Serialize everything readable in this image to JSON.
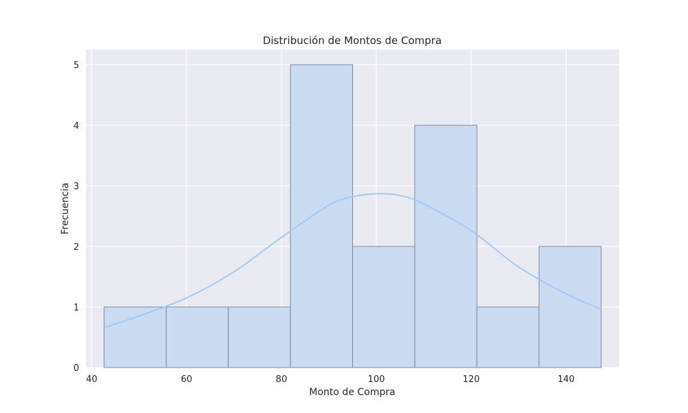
{
  "chart_data": {
    "type": "bar",
    "title": "Distribución de Montos de Compra",
    "xlabel": "Monto de Compra",
    "ylabel": "Frecuencia",
    "bins": [
      {
        "start": 42.6,
        "end": 55.7,
        "count": 1
      },
      {
        "start": 55.7,
        "end": 68.8,
        "count": 1
      },
      {
        "start": 68.8,
        "end": 81.9,
        "count": 1
      },
      {
        "start": 81.9,
        "end": 95.0,
        "count": 5
      },
      {
        "start": 95.0,
        "end": 108.1,
        "count": 2
      },
      {
        "start": 108.1,
        "end": 121.2,
        "count": 4
      },
      {
        "start": 121.2,
        "end": 134.3,
        "count": 1
      },
      {
        "start": 134.3,
        "end": 147.4,
        "count": 2
      }
    ],
    "kde": {
      "x": [
        42.6,
        50,
        60,
        70,
        80,
        90,
        95,
        100,
        105,
        110,
        120,
        130,
        140,
        147.4
      ],
      "y": [
        0.66,
        0.85,
        1.15,
        1.58,
        2.15,
        2.68,
        2.82,
        2.87,
        2.84,
        2.7,
        2.26,
        1.66,
        1.22,
        0.96
      ]
    },
    "xlim": [
      38.8,
      151.2
    ],
    "ylim": [
      0,
      5.25
    ],
    "xticks": [
      40,
      60,
      80,
      100,
      120,
      140
    ],
    "yticks": [
      0,
      1,
      2,
      3,
      4,
      5
    ],
    "grid": true,
    "colors": {
      "background": "#eaeaf2",
      "bar_fill": "#c6d9f2",
      "bar_edge": "#7d8899",
      "kde_line": "#a1c9f4",
      "grid": "#ffffff"
    }
  }
}
